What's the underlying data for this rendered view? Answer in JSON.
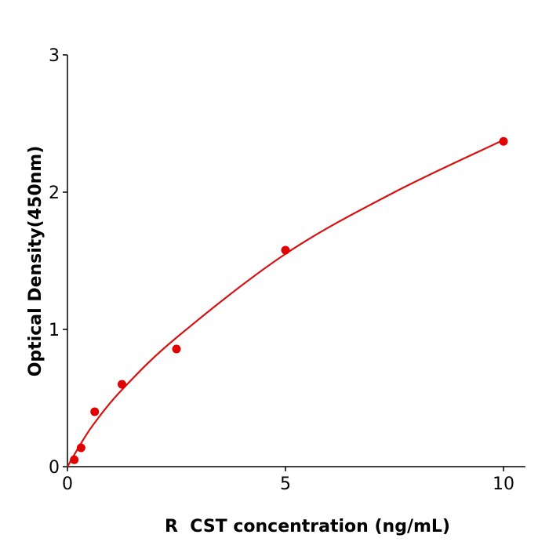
{
  "chart_data": {
    "type": "scatter",
    "title": "",
    "xlabel": "R  CST concentration (ng/mL)",
    "ylabel": "Optical Density(450nm)",
    "xlim": [
      0,
      10.5
    ],
    "ylim": [
      0,
      3
    ],
    "xticks": [
      "0",
      "5",
      "10"
    ],
    "yticks": [
      "0",
      "1",
      "2",
      "3"
    ],
    "grid": false,
    "legend": "none",
    "color": "#e00000",
    "line_color": "#d81010",
    "points": [
      {
        "x": 0.156,
        "y": 0.05
      },
      {
        "x": 0.3125,
        "y": 0.137
      },
      {
        "x": 0.625,
        "y": 0.4
      },
      {
        "x": 1.25,
        "y": 0.6
      },
      {
        "x": 2.5,
        "y": 0.857
      },
      {
        "x": 5,
        "y": 1.577
      },
      {
        "x": 10,
        "y": 2.37
      }
    ],
    "fit_curve": [
      {
        "x": 0,
        "y": 0
      },
      {
        "x": 0.3125,
        "y": 0.17
      },
      {
        "x": 0.625,
        "y": 0.32
      },
      {
        "x": 1.25,
        "y": 0.56
      },
      {
        "x": 2.5,
        "y": 0.94
      },
      {
        "x": 5,
        "y": 1.55
      },
      {
        "x": 7.5,
        "y": 2.0
      },
      {
        "x": 10,
        "y": 2.38
      }
    ]
  }
}
